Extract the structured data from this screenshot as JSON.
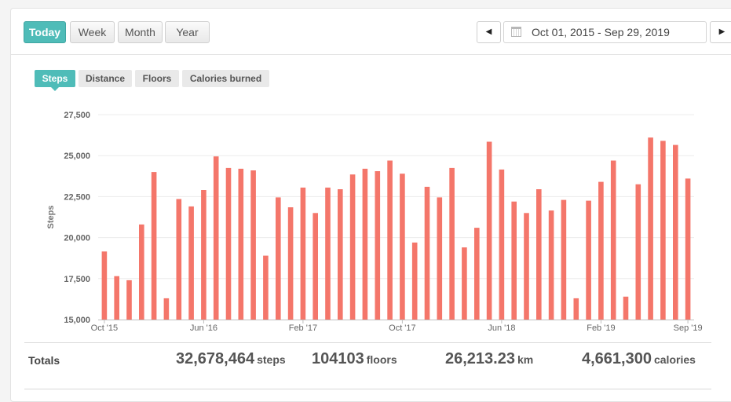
{
  "range_buttons": [
    {
      "label": "Today",
      "active": true
    },
    {
      "label": "Week",
      "active": false
    },
    {
      "label": "Month",
      "active": false
    },
    {
      "label": "Year",
      "active": false
    }
  ],
  "date_range": {
    "prev_icon": "triangle-left",
    "next_icon": "triangle-right",
    "calendar_icon": "calendar",
    "text": "Oct 01, 2015 - Sep 29, 2019"
  },
  "metric_tabs": [
    {
      "label": "Steps",
      "active": true
    },
    {
      "label": "Distance",
      "active": false
    },
    {
      "label": "Floors",
      "active": false
    },
    {
      "label": "Calories burned",
      "active": false
    }
  ],
  "chart_data": {
    "type": "bar",
    "ylabel": "Steps",
    "xlabel": "",
    "ylim": [
      15000,
      27500
    ],
    "yticks": [
      15000,
      17500,
      20000,
      22500,
      25000,
      27500
    ],
    "ytick_labels": [
      "15,000",
      "17,500",
      "20,000",
      "22,500",
      "25,000",
      "27,500"
    ],
    "xtick_labels": [
      {
        "label": "Oct '15",
        "bar_index": 0
      },
      {
        "label": "Jun '16",
        "bar_index": 8
      },
      {
        "label": "Feb '17",
        "bar_index": 16
      },
      {
        "label": "Oct '17",
        "bar_index": 24
      },
      {
        "label": "Jun '18",
        "bar_index": 32
      },
      {
        "label": "Feb '19",
        "bar_index": 40
      },
      {
        "label": "Sep '19",
        "bar_index": 47
      }
    ],
    "grid": true,
    "bar_color": "#f4766a",
    "values": [
      19150,
      17650,
      17400,
      20800,
      24000,
      16300,
      22350,
      21900,
      22900,
      24950,
      24250,
      24200,
      24100,
      18900,
      22450,
      21850,
      23050,
      21500,
      23050,
      22950,
      23850,
      24200,
      24050,
      24700,
      23900,
      19700,
      23100,
      22450,
      24250,
      19400,
      20600,
      25850,
      24150,
      22200,
      21500,
      22950,
      21650,
      22300,
      16300,
      22250,
      23400,
      24700,
      16400,
      23250,
      26100,
      25900,
      25650,
      23600
    ]
  },
  "totals": {
    "label": "Totals",
    "steps": {
      "value": "32,678,464",
      "unit": "steps"
    },
    "floors": {
      "value": "104103",
      "unit": "floors"
    },
    "distance": {
      "value": "26,213.23",
      "unit": "km"
    },
    "calories": {
      "value": "4,661,300",
      "unit": "calories"
    }
  }
}
